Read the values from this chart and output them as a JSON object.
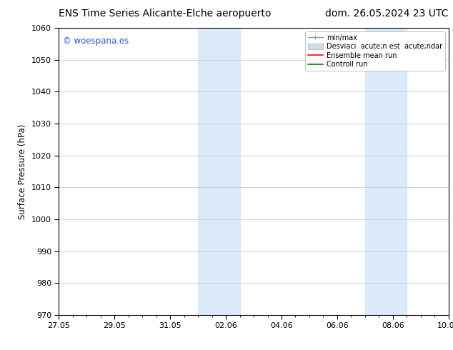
{
  "title_left": "ENS Time Series Alicante-Elche aeropuerto",
  "title_right": "dom. 26.05.2024 23 UTC",
  "ylabel": "Surface Pressure (hPa)",
  "ylim": [
    970,
    1060
  ],
  "yticks": [
    970,
    980,
    990,
    1000,
    1010,
    1020,
    1030,
    1040,
    1050,
    1060
  ],
  "xtick_labels": [
    "27.05",
    "29.05",
    "31.05",
    "02.06",
    "04.06",
    "06.06",
    "08.06",
    "10.06"
  ],
  "xtick_positions": [
    0,
    2,
    4,
    6,
    8,
    10,
    12,
    14
  ],
  "shaded_bands": [
    {
      "x_start": 5.0,
      "x_end": 6.5
    },
    {
      "x_start": 11.0,
      "x_end": 12.5
    }
  ],
  "shaded_color": "#daeaf8",
  "watermark_text": "© woespana.es",
  "watermark_color": "#3355cc",
  "legend_entries": [
    {
      "label": "min/max",
      "color": "#999999",
      "lw": 1.0
    },
    {
      "label": "Desviaci  acute;n est  acute;ndar",
      "color": "#ccdded",
      "lw": 6
    },
    {
      "label": "Ensemble mean run",
      "color": "red",
      "lw": 1.2
    },
    {
      "label": "Controll run",
      "color": "green",
      "lw": 1.2
    }
  ],
  "bg_color": "#ffffff",
  "grid_color": "#cccccc",
  "title_fontsize": 10,
  "tick_fontsize": 8,
  "label_fontsize": 8.5,
  "legend_fontsize": 7
}
